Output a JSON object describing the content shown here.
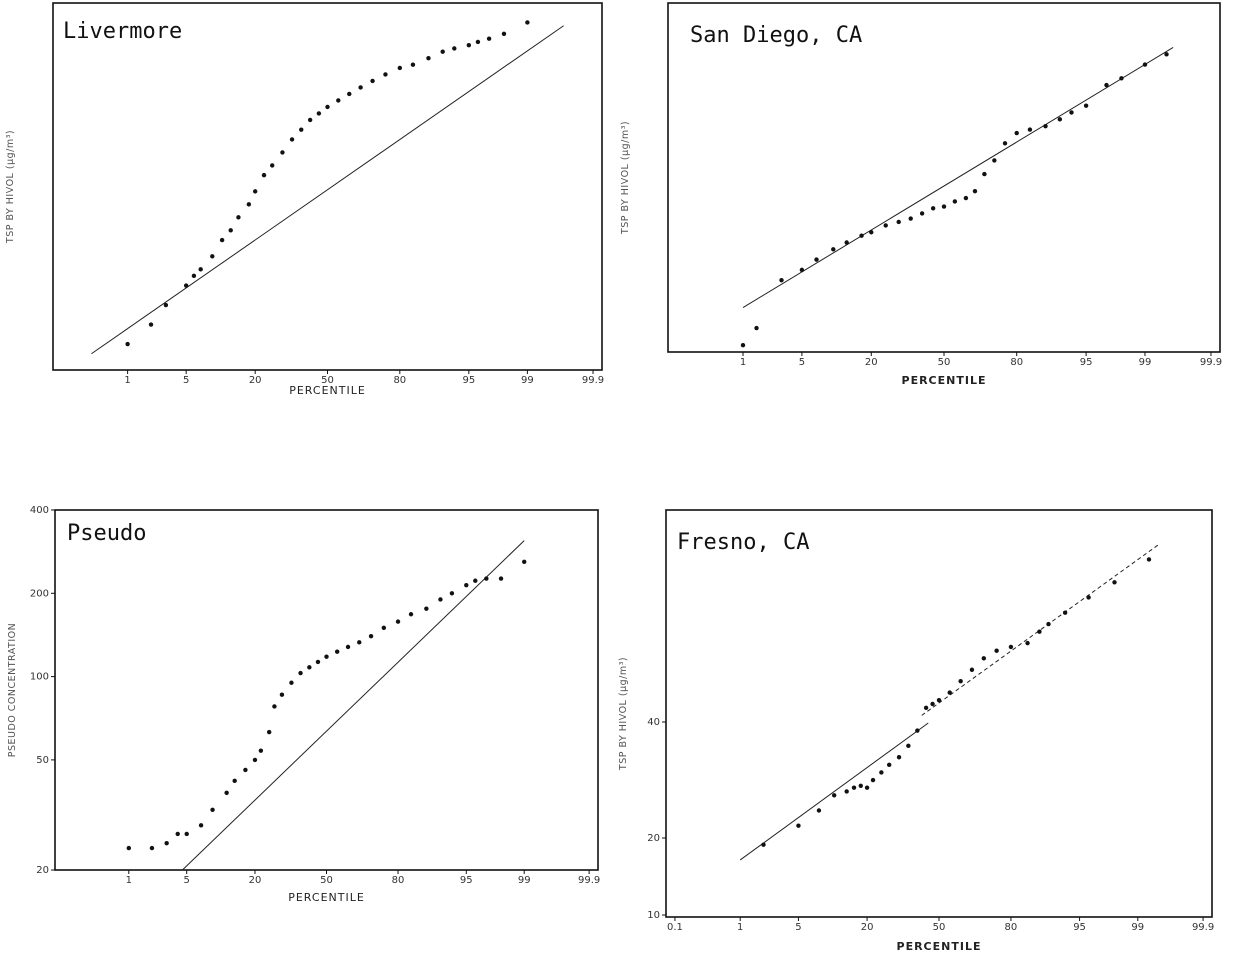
{
  "chart_data": [
    {
      "type": "scatter",
      "title": "Livermore",
      "xlabel": "PERCENTILE",
      "ylabel": "TSP BY HIVOL (μg/m³)",
      "x_scale": "normal-probability",
      "x_ticks": [
        "1",
        "5",
        "20",
        "50",
        "80",
        "95",
        "99",
        "99.9"
      ],
      "y_ticks": [],
      "points": [
        [
          1,
          0.03
        ],
        [
          2,
          0.09
        ],
        [
          3,
          0.15
        ],
        [
          5,
          0.21
        ],
        [
          6,
          0.24
        ],
        [
          7,
          0.26
        ],
        [
          9,
          0.3
        ],
        [
          11,
          0.35
        ],
        [
          13,
          0.38
        ],
        [
          15,
          0.42
        ],
        [
          18,
          0.46
        ],
        [
          20,
          0.5
        ],
        [
          23,
          0.55
        ],
        [
          26,
          0.58
        ],
        [
          30,
          0.62
        ],
        [
          34,
          0.66
        ],
        [
          38,
          0.69
        ],
        [
          42,
          0.72
        ],
        [
          46,
          0.74
        ],
        [
          50,
          0.76
        ],
        [
          55,
          0.78
        ],
        [
          60,
          0.8
        ],
        [
          65,
          0.82
        ],
        [
          70,
          0.84
        ],
        [
          75,
          0.86
        ],
        [
          80,
          0.88
        ],
        [
          84,
          0.89
        ],
        [
          88,
          0.91
        ],
        [
          91,
          0.93
        ],
        [
          93,
          0.94
        ],
        [
          95,
          0.95
        ],
        [
          96,
          0.96
        ],
        [
          97,
          0.97
        ],
        [
          98,
          0.985
        ],
        [
          99,
          1.02
        ]
      ],
      "fit_lines": [
        [
          [
            0.3,
            0.0
          ],
          [
            99.7,
            1.01
          ]
        ]
      ]
    },
    {
      "type": "scatter",
      "title": "San Diego, CA",
      "xlabel": "PERCENTILE",
      "ylabel": "TSP BY HIVOL (μg/m³)",
      "x_scale": "normal-probability",
      "x_ticks": [
        "1",
        "5",
        "20",
        "50",
        "80",
        "95",
        "99",
        "99.9"
      ],
      "y_ticks": [],
      "points": [
        [
          1,
          0.0
        ],
        [
          1.5,
          0.05
        ],
        [
          3,
          0.19
        ],
        [
          5,
          0.22
        ],
        [
          7,
          0.25
        ],
        [
          10,
          0.28
        ],
        [
          13,
          0.3
        ],
        [
          17,
          0.32
        ],
        [
          20,
          0.33
        ],
        [
          25,
          0.35
        ],
        [
          30,
          0.36
        ],
        [
          35,
          0.37
        ],
        [
          40,
          0.385
        ],
        [
          45,
          0.4
        ],
        [
          50,
          0.405
        ],
        [
          55,
          0.42
        ],
        [
          60,
          0.43
        ],
        [
          64,
          0.45
        ],
        [
          68,
          0.5
        ],
        [
          72,
          0.54
        ],
        [
          76,
          0.59
        ],
        [
          80,
          0.62
        ],
        [
          84,
          0.63
        ],
        [
          88,
          0.64
        ],
        [
          91,
          0.66
        ],
        [
          93,
          0.68
        ],
        [
          95,
          0.7
        ],
        [
          97,
          0.76
        ],
        [
          98,
          0.78
        ],
        [
          99,
          0.82
        ],
        [
          99.5,
          0.85
        ]
      ],
      "fit_lines": [
        [
          [
            1,
            0.11
          ],
          [
            99.6,
            0.87
          ]
        ]
      ]
    },
    {
      "type": "scatter",
      "title": "Pseudo",
      "xlabel": "PERCENTILE",
      "ylabel": "PSEUDO CONCENTRATION",
      "x_scale": "normal-probability",
      "x_ticks": [
        "1",
        "5",
        "20",
        "50",
        "80",
        "95",
        "99",
        "99.9"
      ],
      "y_ticks": [
        "20",
        "50",
        "100",
        "200",
        "400"
      ],
      "y_scale": "log",
      "points": [
        [
          1,
          24
        ],
        [
          2,
          24
        ],
        [
          3,
          25
        ],
        [
          4,
          27
        ],
        [
          5,
          27
        ],
        [
          7,
          29
        ],
        [
          9,
          33
        ],
        [
          12,
          38
        ],
        [
          14,
          42
        ],
        [
          17,
          46
        ],
        [
          20,
          50
        ],
        [
          22,
          54
        ],
        [
          25,
          63
        ],
        [
          27,
          78
        ],
        [
          30,
          86
        ],
        [
          34,
          95
        ],
        [
          38,
          103
        ],
        [
          42,
          108
        ],
        [
          46,
          113
        ],
        [
          50,
          118
        ],
        [
          55,
          123
        ],
        [
          60,
          128
        ],
        [
          65,
          133
        ],
        [
          70,
          140
        ],
        [
          75,
          150
        ],
        [
          80,
          158
        ],
        [
          84,
          168
        ],
        [
          88,
          176
        ],
        [
          91,
          190
        ],
        [
          93,
          200
        ],
        [
          95,
          214
        ],
        [
          96,
          222
        ],
        [
          97,
          226
        ],
        [
          98,
          226
        ],
        [
          99,
          260
        ]
      ],
      "fit_lines": [
        [
          [
            4.5,
            20
          ],
          [
            99,
            310
          ]
        ]
      ]
    },
    {
      "type": "scatter",
      "title": "Fresno, CA",
      "xlabel": "PERCENTILE",
      "ylabel": "TSP BY HIVOL (μg/m³)",
      "x_scale": "normal-probability",
      "x_ticks": [
        "0.1",
        "1",
        "5",
        "20",
        "50",
        "80",
        "95",
        "99",
        "99.9"
      ],
      "y_ticks": [
        "10",
        "20",
        "40"
      ],
      "y_scale": "log",
      "points": [
        [
          2,
          0.17
        ],
        [
          5,
          0.22
        ],
        [
          8,
          0.26
        ],
        [
          11,
          0.3
        ],
        [
          14,
          0.31
        ],
        [
          16,
          0.32
        ],
        [
          18,
          0.325
        ],
        [
          20,
          0.32
        ],
        [
          22,
          0.34
        ],
        [
          25,
          0.36
        ],
        [
          28,
          0.38
        ],
        [
          32,
          0.4
        ],
        [
          36,
          0.43
        ],
        [
          40,
          0.47
        ],
        [
          44,
          0.53
        ],
        [
          47,
          0.54
        ],
        [
          50,
          0.55
        ],
        [
          55,
          0.57
        ],
        [
          60,
          0.6
        ],
        [
          65,
          0.63
        ],
        [
          70,
          0.66
        ],
        [
          75,
          0.68
        ],
        [
          80,
          0.69
        ],
        [
          85,
          0.7
        ],
        [
          88,
          0.73
        ],
        [
          90,
          0.75
        ],
        [
          93,
          0.78
        ],
        [
          96,
          0.82
        ],
        [
          98,
          0.86
        ],
        [
          99.3,
          0.92
        ]
      ],
      "fit_lines": [
        [
          [
            1,
            0.13
          ],
          [
            45,
            0.49
          ]
        ],
        [
          [
            42,
            0.51
          ],
          [
            99.5,
            0.96
          ]
        ]
      ]
    }
  ]
}
